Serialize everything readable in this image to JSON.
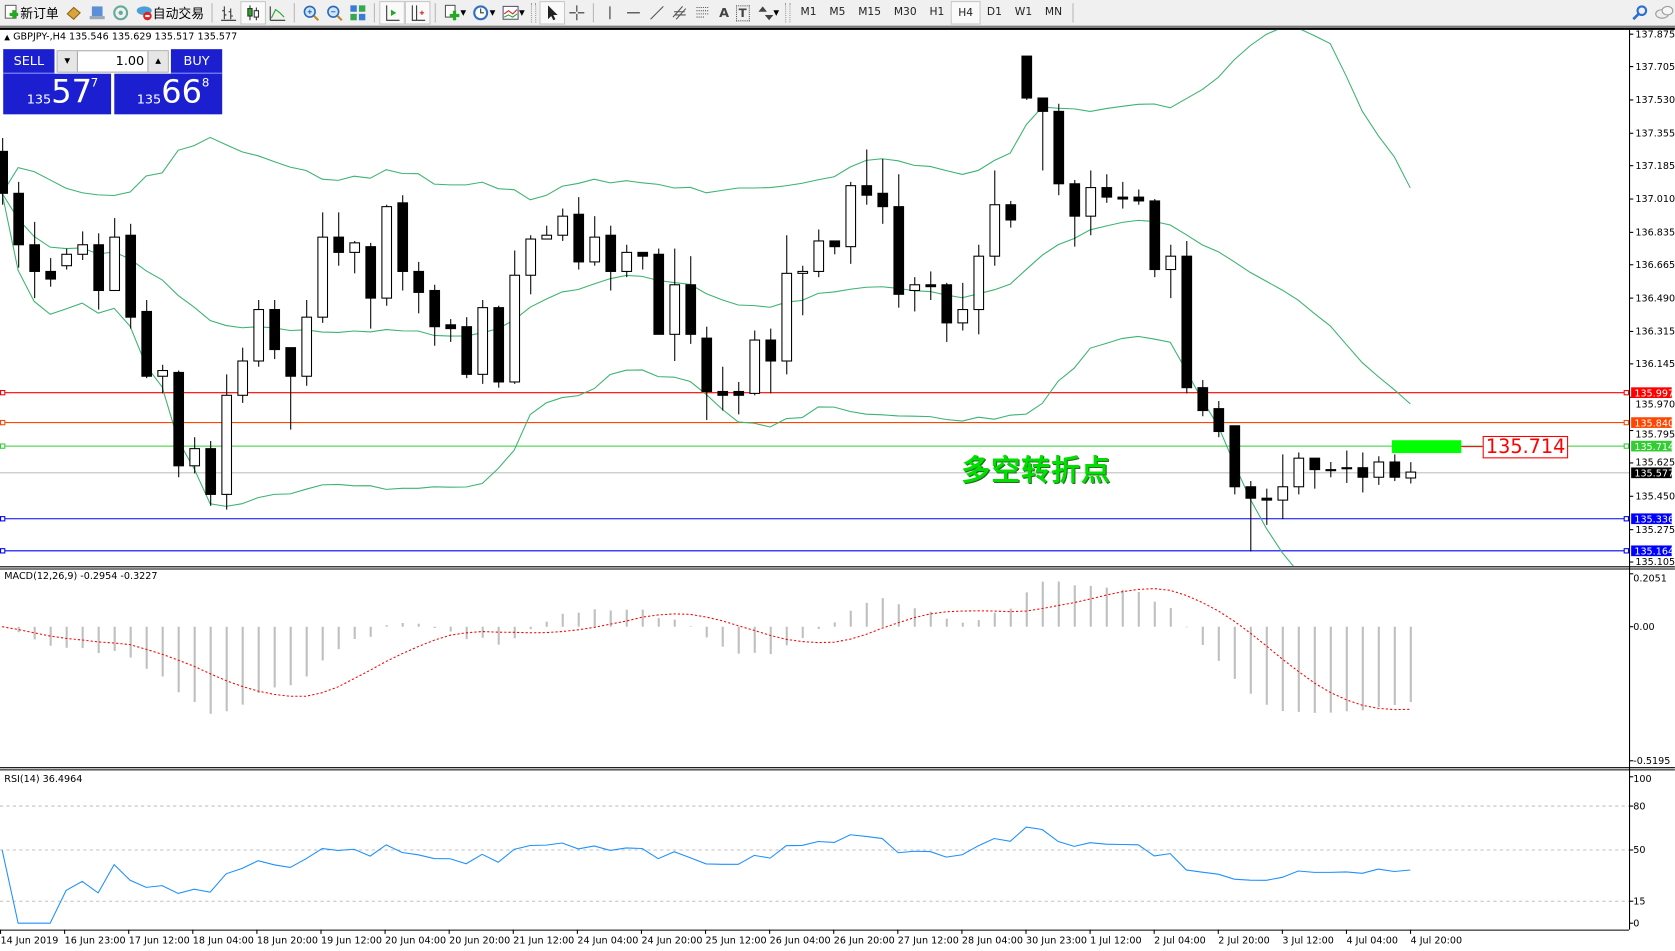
{
  "toolbar": {
    "new_order": "新订单",
    "auto_trading": "自动交易",
    "icons": [
      "new-order-icon",
      "market-watch-icon",
      "navigator-icon",
      "signals-icon",
      "auto-trading-icon",
      "bar-chart-icon",
      "candlestick-icon",
      "line-chart-icon",
      "zoom-in-icon",
      "zoom-out-icon",
      "tile-windows-icon",
      "auto-scroll-icon",
      "chart-shift-icon",
      "indicators-icon",
      "periodicity-icon",
      "templates-icon",
      "cursor-icon",
      "crosshair-icon",
      "vertical-line-icon",
      "horizontal-line-icon",
      "trendline-icon",
      "equidistant-channel-icon",
      "fibonacci-icon",
      "text-icon",
      "text-label-icon",
      "arrows-icon",
      "search-icon",
      "chat-icon"
    ],
    "text_tool": "A",
    "label_tool": "T",
    "periods": [
      "M1",
      "M5",
      "M15",
      "M30",
      "H1",
      "H4",
      "D1",
      "W1",
      "MN"
    ],
    "active_period": "H4"
  },
  "chart_header": "GBPJPY-,H4  135.546 135.629 135.517 135.577",
  "one_click": {
    "sell_label": "SELL",
    "buy_label": "BUY",
    "lot": "1.00",
    "sell_prefix": "135",
    "sell_big": "57",
    "sell_sup": "7",
    "buy_prefix": "135",
    "buy_big": "66",
    "buy_sup": "8"
  },
  "annotation": {
    "text": "多空转折点",
    "price_label": "135.714",
    "box_color": "#00ff00"
  },
  "colors": {
    "bands": "#3cb371",
    "macd_hist": "#c0c0c0",
    "macd_signal": "#ff0000",
    "rsi": "#1e90ff",
    "bid": "#c0c0c0"
  },
  "chart_data": {
    "type": "candlestick",
    "symbol": "GBPJPY-",
    "timeframe": "H4",
    "ylim": [
      135.105,
      137.875
    ],
    "price_ticks": [
      "137.875",
      "137.705",
      "137.530",
      "137.355",
      "137.185",
      "137.010",
      "136.835",
      "136.665",
      "136.490",
      "136.315",
      "136.145",
      "135.970",
      "135.795",
      "135.625",
      "135.450",
      "135.275",
      "135.105"
    ],
    "x_ticks": [
      "14 Jun 2019",
      "16 Jun 23:00",
      "17 Jun 12:00",
      "18 Jun 04:00",
      "18 Jun 20:00",
      "19 Jun 12:00",
      "20 Jun 04:00",
      "20 Jun 20:00",
      "21 Jun 12:00",
      "24 Jun 04:00",
      "24 Jun 20:00",
      "25 Jun 12:00",
      "26 Jun 04:00",
      "26 Jun 20:00",
      "27 Jun 12:00",
      "28 Jun 04:00",
      "30 Jun 23:00",
      "1 Jul 12:00",
      "2 Jul 04:00",
      "2 Jul 20:00",
      "3 Jul 12:00",
      "4 Jul 04:00",
      "4 Jul 20:00"
    ],
    "ohlc": [
      [
        137.26,
        137.33,
        136.98,
        137.04
      ],
      [
        137.04,
        137.1,
        136.65,
        136.77
      ],
      [
        136.77,
        136.89,
        136.49,
        136.63
      ],
      [
        136.63,
        136.7,
        136.55,
        136.59
      ],
      [
        136.66,
        136.75,
        136.64,
        136.72
      ],
      [
        136.72,
        136.84,
        136.69,
        136.77
      ],
      [
        136.77,
        136.83,
        136.43,
        136.53
      ],
      [
        136.53,
        136.91,
        136.53,
        136.81
      ],
      [
        136.82,
        136.88,
        136.33,
        136.39
      ],
      [
        136.42,
        136.48,
        136.07,
        136.08
      ],
      [
        136.08,
        136.14,
        135.99,
        136.11
      ],
      [
        136.1,
        136.11,
        135.55,
        135.61
      ],
      [
        135.61,
        135.76,
        135.57,
        135.7
      ],
      [
        135.7,
        135.74,
        135.4,
        135.46
      ],
      [
        135.46,
        136.09,
        135.38,
        135.98
      ],
      [
        135.98,
        136.23,
        135.94,
        136.16
      ],
      [
        136.16,
        136.48,
        136.13,
        136.43
      ],
      [
        136.43,
        136.48,
        136.17,
        136.22
      ],
      [
        136.23,
        136.23,
        135.8,
        136.08
      ],
      [
        136.08,
        136.48,
        136.03,
        136.39
      ],
      [
        136.39,
        136.94,
        136.36,
        136.81
      ],
      [
        136.81,
        136.94,
        136.66,
        136.73
      ],
      [
        136.73,
        136.79,
        136.62,
        136.78
      ],
      [
        136.76,
        136.78,
        136.33,
        136.49
      ],
      [
        136.49,
        136.98,
        136.45,
        136.97
      ],
      [
        136.99,
        137.03,
        136.53,
        136.63
      ],
      [
        136.63,
        136.68,
        136.41,
        136.52
      ],
      [
        136.53,
        136.56,
        136.24,
        136.34
      ],
      [
        136.35,
        136.38,
        136.26,
        136.33
      ],
      [
        136.34,
        136.39,
        136.07,
        136.09
      ],
      [
        136.09,
        136.48,
        136.04,
        136.44
      ],
      [
        136.44,
        136.45,
        136.02,
        136.05
      ],
      [
        136.05,
        136.74,
        136.04,
        136.61
      ],
      [
        136.61,
        136.82,
        136.51,
        136.8
      ],
      [
        136.8,
        136.87,
        136.8,
        136.82
      ],
      [
        136.82,
        136.96,
        136.79,
        136.92
      ],
      [
        136.93,
        137.02,
        136.64,
        136.68
      ],
      [
        136.68,
        136.92,
        136.66,
        136.81
      ],
      [
        136.82,
        136.87,
        136.53,
        136.63
      ],
      [
        136.63,
        136.77,
        136.6,
        136.73
      ],
      [
        136.73,
        136.73,
        136.64,
        136.71
      ],
      [
        136.72,
        136.75,
        136.3,
        136.3
      ],
      [
        136.3,
        136.75,
        136.16,
        136.56
      ],
      [
        136.56,
        136.71,
        136.25,
        136.3
      ],
      [
        136.28,
        136.34,
        135.85,
        136.0
      ],
      [
        136.0,
        136.13,
        135.9,
        135.98
      ],
      [
        136.0,
        136.05,
        135.88,
        135.98
      ],
      [
        135.99,
        136.32,
        135.98,
        136.27
      ],
      [
        136.27,
        136.33,
        135.99,
        136.16
      ],
      [
        136.16,
        136.82,
        136.09,
        136.62
      ],
      [
        136.62,
        136.66,
        136.4,
        136.63
      ],
      [
        136.63,
        136.85,
        136.6,
        136.79
      ],
      [
        136.79,
        136.79,
        136.72,
        136.76
      ],
      [
        136.76,
        137.1,
        136.67,
        137.08
      ],
      [
        137.08,
        137.27,
        136.98,
        137.03
      ],
      [
        137.04,
        137.22,
        136.88,
        136.97
      ],
      [
        136.97,
        137.14,
        136.44,
        136.51
      ],
      [
        136.53,
        136.6,
        136.42,
        136.56
      ],
      [
        136.56,
        136.63,
        136.48,
        136.55
      ],
      [
        136.56,
        136.57,
        136.26,
        136.36
      ],
      [
        136.36,
        136.57,
        136.32,
        136.43
      ],
      [
        136.43,
        136.77,
        136.3,
        136.71
      ],
      [
        136.71,
        137.16,
        136.66,
        136.98
      ],
      [
        136.98,
        137.0,
        136.86,
        136.9
      ],
      [
        137.76,
        137.76,
        137.53,
        137.54
      ],
      [
        137.54,
        137.54,
        137.16,
        137.47
      ],
      [
        137.47,
        137.51,
        137.03,
        137.09
      ],
      [
        137.09,
        137.11,
        136.76,
        136.92
      ],
      [
        136.92,
        137.16,
        136.82,
        137.07
      ],
      [
        137.07,
        137.14,
        136.99,
        137.02
      ],
      [
        137.02,
        137.1,
        136.96,
        137.01
      ],
      [
        137.02,
        137.06,
        136.98,
        137.0
      ],
      [
        137.0,
        137.01,
        136.6,
        136.64
      ],
      [
        136.64,
        136.77,
        136.49,
        136.71
      ],
      [
        136.71,
        136.79,
        135.99,
        136.02
      ],
      [
        136.02,
        136.06,
        135.87,
        135.9
      ],
      [
        135.91,
        135.95,
        135.76,
        135.79
      ],
      [
        135.82,
        135.82,
        135.46,
        135.5
      ],
      [
        135.5,
        135.53,
        135.16,
        135.44
      ],
      [
        135.44,
        135.49,
        135.3,
        135.43
      ],
      [
        135.43,
        135.67,
        135.33,
        135.5
      ],
      [
        135.5,
        135.68,
        135.46,
        135.65
      ],
      [
        135.65,
        135.65,
        135.49,
        135.59
      ],
      [
        135.59,
        135.63,
        135.55,
        135.59
      ],
      [
        135.6,
        135.69,
        135.52,
        135.6
      ],
      [
        135.6,
        135.68,
        135.47,
        135.55
      ],
      [
        135.55,
        135.66,
        135.51,
        135.63
      ],
      [
        135.63,
        135.67,
        135.53,
        135.55
      ],
      [
        135.546,
        135.629,
        135.517,
        135.577
      ]
    ],
    "levels": [
      {
        "price": "135.997",
        "color": "#ff0000"
      },
      {
        "price": "135.840",
        "color": "#ff4500"
      },
      {
        "price": "135.714",
        "color": "#32cd32"
      },
      {
        "price": "135.577",
        "color": "#000000",
        "bid": true
      },
      {
        "price": "135.336",
        "color": "#0000ff"
      },
      {
        "price": "135.164",
        "color": "#0000ff"
      }
    ],
    "macd": {
      "label": "MACD(12,26,9) -0.2954 -0.3227",
      "ticks": [
        "0.2051",
        "0.00",
        "-0.5195"
      ],
      "ylim": [
        -0.5195,
        0.2051
      ]
    },
    "rsi": {
      "label": "RSI(14) 36.4964",
      "ticks": [
        "100",
        "80",
        "50",
        "15",
        "0"
      ],
      "levels": [
        80,
        50,
        15
      ],
      "ylim": [
        0,
        100
      ]
    }
  }
}
